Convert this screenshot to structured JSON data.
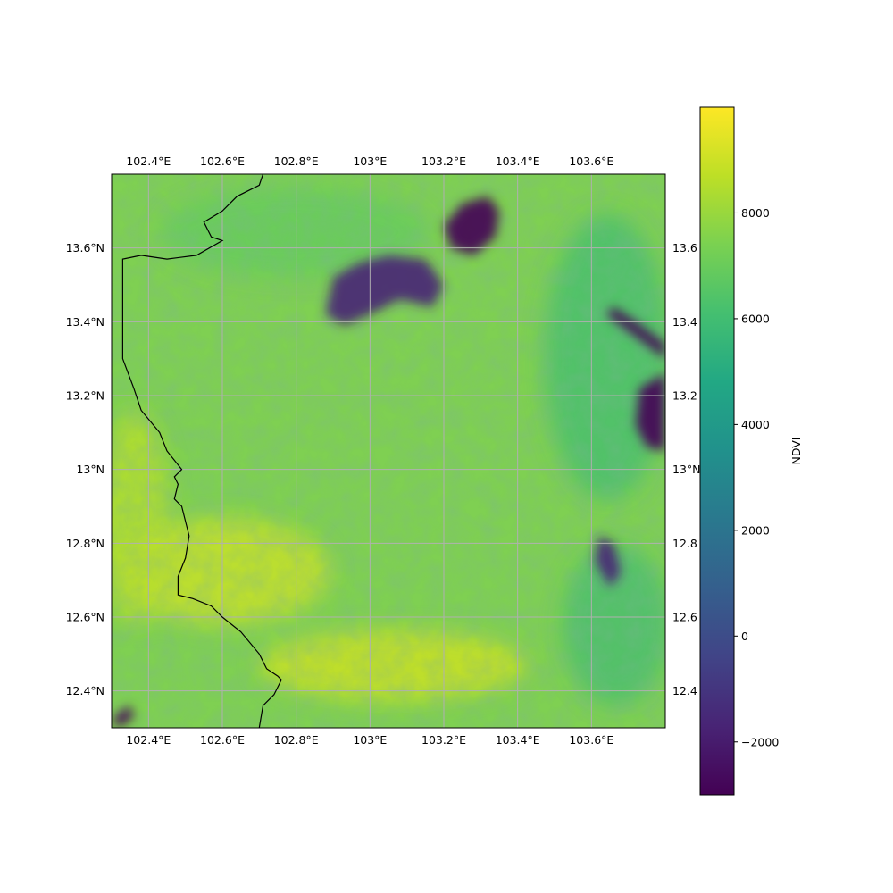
{
  "chart_data": {
    "type": "heatmap",
    "title": "",
    "colorbar": {
      "label": "NDVI",
      "colormap": "viridis",
      "range": [
        -3000,
        10000
      ],
      "ticks": [
        -2000,
        0,
        2000,
        4000,
        6000,
        8000
      ],
      "tick_labels": [
        "−2000",
        "0",
        "2000",
        "4000",
        "6000",
        "8000"
      ]
    },
    "x_axis": {
      "range": [
        102.3,
        103.8
      ],
      "ticks": [
        102.4,
        102.6,
        102.8,
        103.0,
        103.2,
        103.4,
        103.6
      ],
      "tick_labels": [
        "102.4°E",
        "102.6°E",
        "102.8°E",
        "103°E",
        "103.2°E",
        "103.4°E",
        "103.6°E"
      ],
      "label_positions": [
        "top",
        "bottom"
      ]
    },
    "y_axis": {
      "range": [
        12.3,
        13.8
      ],
      "ticks": [
        12.4,
        12.6,
        12.8,
        13.0,
        13.2,
        13.4,
        13.6
      ],
      "tick_labels": [
        "12.4°N",
        "12.6°N",
        "12.8°N",
        "13°N",
        "13.2°N",
        "13.4°N",
        "13.6°N"
      ],
      "right_tick_labels": [
        "12.4",
        "12.6",
        "12.8",
        "13°N",
        "13.2",
        "13.4",
        "13.6"
      ],
      "label_positions": [
        "left",
        "right"
      ]
    },
    "grid": true,
    "grid_color": "#b0b0b0",
    "border_line_color": "#000000",
    "border_line": [
      [
        102.71,
        13.8
      ],
      [
        102.7,
        13.77
      ],
      [
        102.64,
        13.74
      ],
      [
        102.6,
        13.7
      ],
      [
        102.55,
        13.67
      ],
      [
        102.57,
        13.63
      ],
      [
        102.6,
        13.62
      ],
      [
        102.53,
        13.58
      ],
      [
        102.45,
        13.57
      ],
      [
        102.38,
        13.58
      ],
      [
        102.33,
        13.57
      ],
      [
        102.33,
        13.3
      ],
      [
        102.36,
        13.22
      ],
      [
        102.38,
        13.16
      ],
      [
        102.43,
        13.1
      ],
      [
        102.45,
        13.05
      ],
      [
        102.49,
        13.0
      ],
      [
        102.47,
        12.98
      ],
      [
        102.48,
        12.96
      ],
      [
        102.47,
        12.92
      ],
      [
        102.49,
        12.9
      ],
      [
        102.51,
        12.82
      ],
      [
        102.5,
        12.76
      ],
      [
        102.48,
        12.71
      ],
      [
        102.48,
        12.66
      ],
      [
        102.52,
        12.65
      ],
      [
        102.57,
        12.63
      ],
      [
        102.6,
        12.6
      ],
      [
        102.65,
        12.56
      ],
      [
        102.7,
        12.5
      ],
      [
        102.72,
        12.46
      ],
      [
        102.75,
        12.44
      ],
      [
        102.76,
        12.43
      ],
      [
        102.74,
        12.39
      ],
      [
        102.71,
        12.36
      ],
      [
        102.7,
        12.3
      ]
    ],
    "features": [
      {
        "name": "dark low-NDVI area north",
        "ndvi": -2500,
        "points": [
          [
            103.2,
            13.66
          ],
          [
            103.25,
            13.72
          ],
          [
            103.32,
            13.74
          ],
          [
            103.35,
            13.7
          ],
          [
            103.34,
            13.63
          ],
          [
            103.28,
            13.58
          ],
          [
            103.22,
            13.6
          ]
        ]
      },
      {
        "name": "dark low-NDVI area central north",
        "ndvi": -2000,
        "points": [
          [
            102.88,
            13.42
          ],
          [
            102.9,
            13.52
          ],
          [
            102.97,
            13.56
          ],
          [
            103.05,
            13.58
          ],
          [
            103.15,
            13.57
          ],
          [
            103.2,
            13.5
          ],
          [
            103.17,
            13.44
          ],
          [
            103.08,
            13.46
          ],
          [
            103.0,
            13.42
          ],
          [
            102.93,
            13.39
          ]
        ]
      },
      {
        "name": "water body east",
        "ndvi": -3000,
        "points": [
          [
            103.73,
            13.22
          ],
          [
            103.8,
            13.26
          ],
          [
            103.8,
            13.05
          ],
          [
            103.75,
            13.06
          ],
          [
            103.72,
            13.12
          ]
        ]
      },
      {
        "name": "water strip northeast",
        "ndvi": -2800,
        "points": [
          [
            103.64,
            13.42
          ],
          [
            103.72,
            13.36
          ],
          [
            103.8,
            13.3
          ],
          [
            103.8,
            13.34
          ],
          [
            103.72,
            13.4
          ],
          [
            103.66,
            13.44
          ]
        ]
      },
      {
        "name": "dark patch southeast",
        "ndvi": -1500,
        "points": [
          [
            103.61,
            12.75
          ],
          [
            103.62,
            12.82
          ],
          [
            103.66,
            12.8
          ],
          [
            103.68,
            12.72
          ],
          [
            103.65,
            12.68
          ]
        ]
      },
      {
        "name": "dark patch lower left",
        "ndvi": -2800,
        "points": [
          [
            102.3,
            12.32
          ],
          [
            102.32,
            12.34
          ],
          [
            102.35,
            12.36
          ],
          [
            102.36,
            12.33
          ],
          [
            102.32,
            12.3
          ]
        ]
      }
    ]
  }
}
